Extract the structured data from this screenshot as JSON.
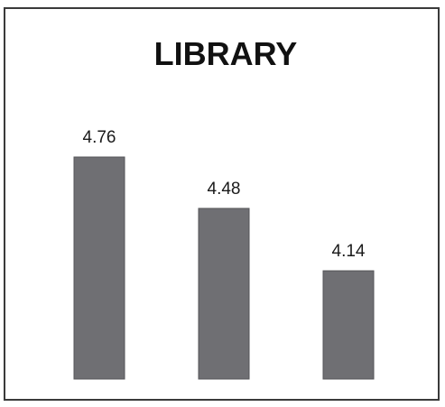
{
  "chart_data": {
    "type": "bar",
    "title": "LIBRARY",
    "categories": [
      "",
      "",
      ""
    ],
    "values": [
      4.76,
      4.48,
      4.14
    ],
    "value_labels": [
      "4.76",
      "4.48",
      "4.14"
    ],
    "xlabel": "",
    "ylabel": "",
    "ylim": [
      3.55,
      4.76
    ],
    "grid": false,
    "legend": "none",
    "bar_color": "#6f6f73"
  }
}
